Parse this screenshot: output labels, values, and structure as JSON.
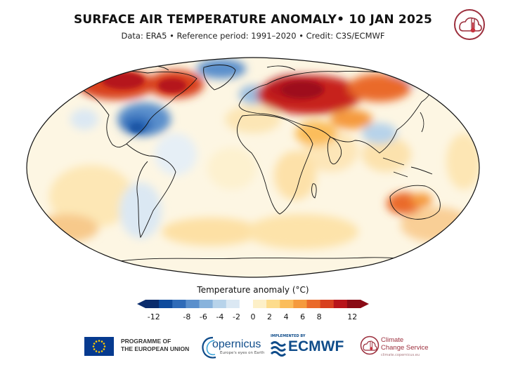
{
  "header": {
    "title": "SURFACE AIR TEMPERATURE ANOMALY• 10 JAN 2025",
    "subtitle": "Data: ERA5 • Reference period: 1991–2020 • Credit: C3S/ECMWF"
  },
  "map": {
    "projection": "Robinson",
    "variable": "Surface air temperature anomaly",
    "date": "10 JAN 2025",
    "notable_anomalies": [
      {
        "region": "northern-canada-alaska",
        "sign": "warm",
        "level": 10
      },
      {
        "region": "eastern-europe-western-russia",
        "sign": "warm",
        "level": 10
      },
      {
        "region": "eastern-united-states",
        "sign": "cold",
        "level": -8
      },
      {
        "region": "greenland-eastern",
        "sign": "cold",
        "level": -6
      },
      {
        "region": "western-europe-uk",
        "sign": "cold",
        "level": -4
      },
      {
        "region": "australia-interior",
        "sign": "warm",
        "level": 8
      },
      {
        "region": "central-siberia",
        "sign": "warm",
        "level": 8
      },
      {
        "region": "south-asia-china",
        "sign": "cold",
        "level": -4
      }
    ]
  },
  "legend": {
    "title": "Temperature anomaly (°C)",
    "min": -13,
    "max": 13,
    "ticks": [
      "-12",
      "-8",
      "-6",
      "-4",
      "-2",
      "0",
      "2",
      "4",
      "6",
      "8",
      "12"
    ],
    "tick_values": [
      -12,
      -8,
      -6,
      -4,
      -2,
      0,
      2,
      4,
      6,
      8,
      12
    ],
    "colors": [
      "#0a2c6c",
      "#0e4a9c",
      "#2f6bb8",
      "#5a8fcc",
      "#88b3dc",
      "#b7d3ea",
      "#dbe8f3",
      "#ffffff",
      "#fdf0c8",
      "#fddc8c",
      "#fbbd5b",
      "#f59a3d",
      "#ea6a2a",
      "#d8401f",
      "#b8141a",
      "#8a0b15"
    ]
  },
  "footer": {
    "eu_line1": "PROGRAMME OF",
    "eu_line2": "THE EUROPEAN UNION",
    "copernicus": "opernicus",
    "copernicus_tagline": "Europe's eyes on Earth",
    "implemented_by": "IMPLEMENTED BY",
    "ecmwf": "ECMWF",
    "ccs_line1": "Climate",
    "ccs_line2": "Change Service",
    "ccs_url": "climate.copernicus.eu"
  },
  "colors": {
    "warm_strong": "#b5161b",
    "cold_strong": "#1a56a6",
    "neutral": "#fdfbf3",
    "brand_c3s": "#9c2f3d",
    "brand_ecmwf": "#0f4c8a",
    "brand_eu": "#063a8f"
  }
}
